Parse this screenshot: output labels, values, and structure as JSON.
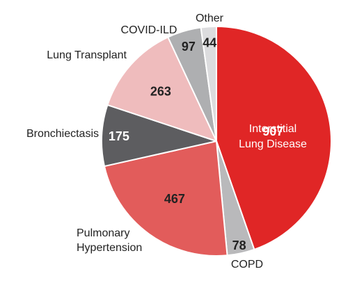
{
  "chart_data": {
    "type": "pie",
    "title": "",
    "slices": [
      {
        "label": "Interstitial\nLung Disease",
        "value": 907,
        "color": "#e02626"
      },
      {
        "label": "COPD",
        "value": 78,
        "color": "#b9b9bb"
      },
      {
        "label": "Pulmonary\nHypertension",
        "value": 467,
        "color": "#e25c5b"
      },
      {
        "label": "Bronchiectasis",
        "value": 175,
        "color": "#5d5d60"
      },
      {
        "label": "Lung Transplant",
        "value": 263,
        "color": "#efbcbd"
      },
      {
        "label": "COVID-ILD",
        "value": 97,
        "color": "#aeafb1"
      },
      {
        "label": "Other",
        "value": 44,
        "color": "#dcdcde"
      }
    ],
    "legend": "none",
    "start_angle": "12 o'clock",
    "direction": "clockwise"
  }
}
